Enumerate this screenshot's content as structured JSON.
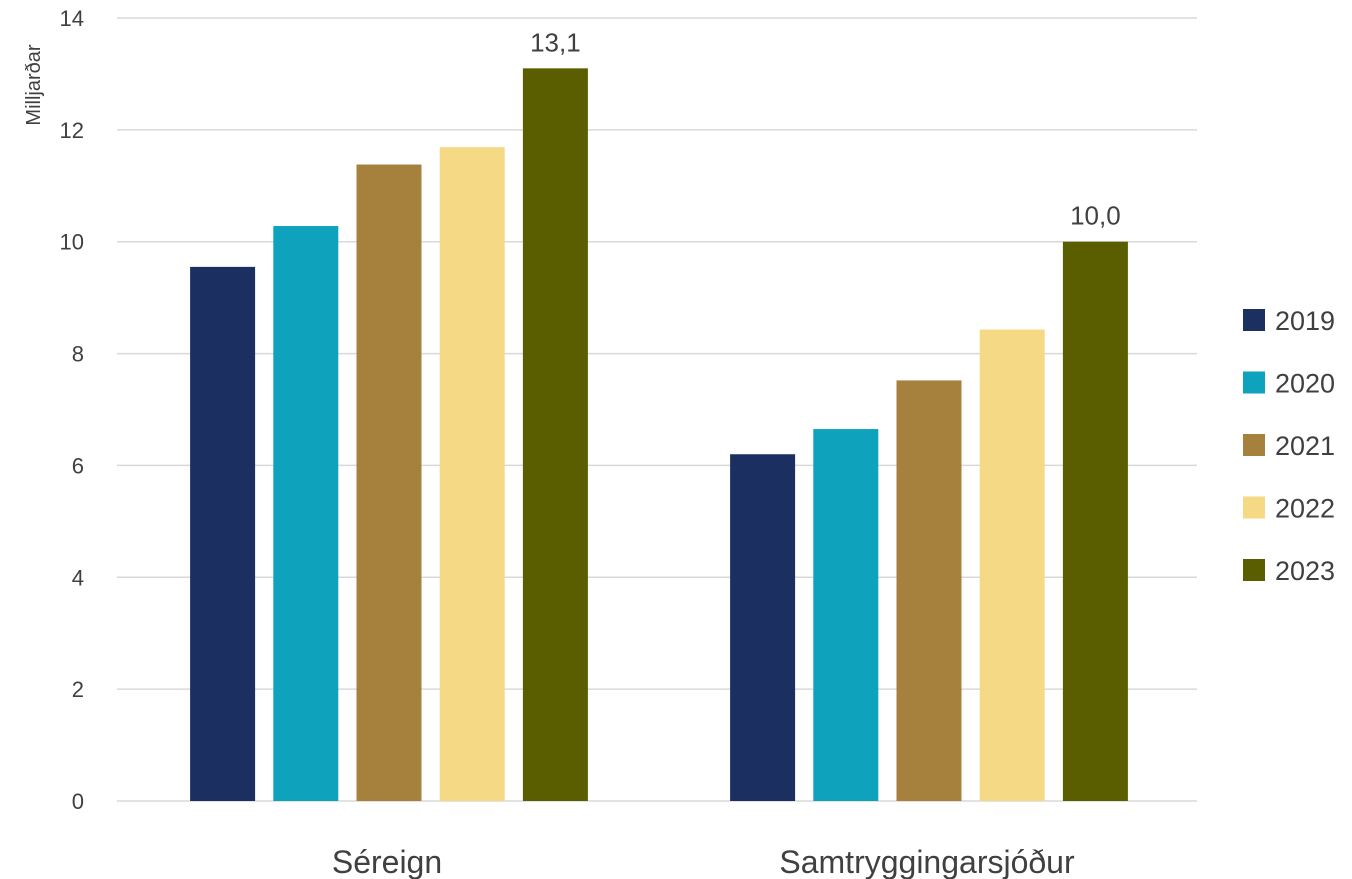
{
  "chart_data": {
    "type": "bar",
    "ylabel": "Milljarðar",
    "ylim": [
      0,
      14
    ],
    "yticks": [
      "0",
      "2",
      "4",
      "6",
      "8",
      "10",
      "12",
      "14"
    ],
    "grid": true,
    "legend_position": "right",
    "categories": [
      "Séreign",
      "Samtryggingarsjóður"
    ],
    "series": [
      {
        "name": "2019",
        "color": "#1b3060",
        "values": [
          9.55,
          6.2
        ]
      },
      {
        "name": "2020",
        "color": "#0ea2bc",
        "values": [
          10.28,
          6.65
        ]
      },
      {
        "name": "2021",
        "color": "#a5813d",
        "values": [
          11.38,
          7.52
        ]
      },
      {
        "name": "2022",
        "color": "#f5d985",
        "values": [
          11.69,
          8.43
        ]
      },
      {
        "name": "2023",
        "color": "#5b5e00",
        "values": [
          13.1,
          10.0
        ]
      }
    ],
    "data_labels": [
      {
        "series": "2023",
        "category": "Séreign",
        "text": "13,1"
      },
      {
        "series": "2023",
        "category": "Samtryggingarsjóður",
        "text": "10,0"
      }
    ]
  }
}
